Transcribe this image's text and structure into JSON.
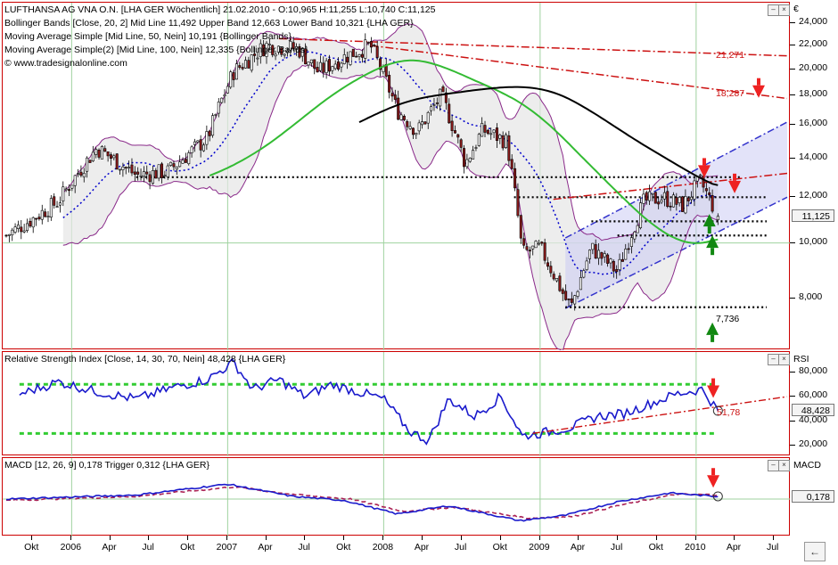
{
  "price_pane": {
    "legend": [
      "LUFTHANSA AG VNA O.N. [LHA GER  Wöchentlich] 21.02.2010 - O:10,965 H:11,255 L:10,740 C:11,125",
      "Bollinger Bands [Close, 20, 2] Mid Line 11,492 Upper Band 12,663 Lower Band 10,321 {LHA GER}",
      "Moving Average Simple [Mid Line, 50, Nein] 10,191 {Bollinger Bands}",
      "Moving Average Simple(2) [Mid Line, 100, Nein] 12,335 {Bollinger Bands}",
      "© www.tradesignalonline.com"
    ],
    "axis_unit": "€",
    "last_price_box": "11,125",
    "annotations": [
      "21,271",
      "18,287",
      "7,736"
    ],
    "colors": {
      "candle_up": "#ffffff",
      "candle_down": "#8b1a1a",
      "bollinger": "#8a2a8a",
      "bollinger_fill": "#e6e6e6",
      "mid_line": "#0000cc",
      "ma50": "#33bb33",
      "ma100": "#000000",
      "resistance": "#cc1111",
      "channel": "#3333cc",
      "channel_fill": "#c8c8f4",
      "horiz_levels": "#000000",
      "arrow_down": "#ee2222",
      "arrow_up": "#118811"
    }
  },
  "rsi_pane": {
    "legend": "Relative Strength Index [Close, 14, 30, 70, Nein] 48,428 {LHA GER}",
    "axis_title": "RSI",
    "value_box": "48,428",
    "annotation": "51,78"
  },
  "macd_pane": {
    "legend": "MACD [12, 26, 9] 0,178 Trigger 0,312 {LHA GER}",
    "axis_title": "MACD",
    "value_box": "0,178"
  },
  "x_axis": {
    "labels": [
      "Okt",
      "2006",
      "Apr",
      "Jul",
      "Okt",
      "2007",
      "Apr",
      "Jul",
      "Okt",
      "2008",
      "Apr",
      "Jul",
      "Okt",
      "2009",
      "Apr",
      "Jul",
      "Okt",
      "2010",
      "Apr",
      "Jul"
    ]
  },
  "chart_data": [
    {
      "type": "candlestick",
      "title": "LUFTHANSA AG VNA O.N. [LHA GER  Wöchentlich]",
      "ylabel": "€",
      "ylim": [
        6.8,
        25.0
      ],
      "y_scale": "log",
      "y_ticks": [
        8,
        10,
        12,
        14,
        16,
        18,
        20,
        22,
        24
      ],
      "y_tick_labels": [
        "8,000",
        "10,000",
        "12,000",
        "14,000",
        "16,000",
        "18,000",
        "20,000",
        "22,000",
        "24,000"
      ],
      "xlim": [
        "2005-08-01",
        "2010-08-02"
      ],
      "date_anchors": [
        "2005-08-01",
        "2005-10-01",
        "2005-12-01",
        "2006-03-01",
        "2006-06-01",
        "2006-08-15",
        "2006-11-15",
        "2007-01-15",
        "2007-04-01",
        "2007-06-15",
        "2007-08-01",
        "2007-10-01",
        "2007-12-01",
        "2008-02-01",
        "2008-03-20",
        "2008-05-15",
        "2008-07-10",
        "2008-08-20",
        "2008-10-15",
        "2008-11-20",
        "2009-01-01",
        "2009-03-01",
        "2009-03-15",
        "2009-05-01",
        "2009-07-01",
        "2009-09-01",
        "2009-10-15",
        "2009-12-01",
        "2010-01-10",
        "2010-02-21"
      ],
      "close_anchors": [
        10.3,
        11.0,
        11.8,
        14.6,
        13.1,
        13.3,
        15.2,
        19.8,
        22.0,
        21.7,
        19.8,
        21.0,
        22.0,
        17.0,
        15.6,
        18.0,
        13.7,
        15.7,
        15.0,
        9.6,
        9.8,
        8.0,
        7.74,
        9.8,
        8.9,
        11.8,
        12.0,
        11.6,
        12.8,
        11.125
      ],
      "series": [
        {
          "name": "Bollinger Upper Band",
          "last": 12.663
        },
        {
          "name": "Bollinger Mid Line",
          "last": 11.492
        },
        {
          "name": "Bollinger Lower Band",
          "last": 10.321
        },
        {
          "name": "Moving Average Simple",
          "last": 10.191
        },
        {
          "name": "Moving Average Simple(2)",
          "last": 12.335
        }
      ],
      "last_bar": {
        "date": "2010-02-21",
        "open": 10.965,
        "high": 11.255,
        "low": 10.74,
        "close": 11.125
      },
      "horizontal_levels": [
        13.0,
        12.0,
        10.9,
        10.3,
        7.736
      ],
      "resistance_lines": [
        {
          "from": [
            "2007-05-01",
            22.6
          ],
          "to": [
            "2010-08-02",
            21.1
          ]
        },
        {
          "from": [
            "2007-12-01",
            22.0
          ],
          "to": [
            "2010-08-02",
            17.8
          ]
        }
      ]
    },
    {
      "type": "line",
      "title": "Relative Strength Index [Close, 14, 30, 70, Nein]",
      "ylim": [
        15,
        92
      ],
      "y_ticks": [
        20,
        40,
        60,
        80
      ],
      "y_tick_labels": [
        "20,000",
        "40,000",
        "60,000",
        "80,000"
      ],
      "series": [
        {
          "name": "RSI",
          "x": [
            "2005-09-01",
            "2005-12-01",
            "2006-03-01",
            "2006-06-01",
            "2006-09-01",
            "2006-11-15",
            "2007-01-15",
            "2007-03-01",
            "2007-05-01",
            "2007-07-01",
            "2007-09-01",
            "2007-11-01",
            "2008-01-01",
            "2008-03-01",
            "2008-04-15",
            "2008-06-01",
            "2008-08-01",
            "2008-10-01",
            "2008-11-20",
            "2009-01-01",
            "2009-03-15",
            "2009-05-15",
            "2009-07-15",
            "2009-09-15",
            "2009-11-15",
            "2010-01-15",
            "2010-02-21"
          ],
          "y": [
            62,
            72,
            64,
            58,
            68,
            74,
            88,
            66,
            74,
            60,
            70,
            64,
            58,
            32,
            24,
            58,
            44,
            60,
            28,
            30,
            35,
            44,
            46,
            54,
            62,
            66,
            48.428
          ]
        }
      ],
      "levels": [
        30,
        70
      ],
      "annotation": "51,78"
    },
    {
      "type": "line",
      "title": "MACD [12, 26, 9]",
      "ylim": [
        -2.5,
        2.5
      ],
      "series": [
        {
          "name": "MACD",
          "x": [
            "2005-08-01",
            "2006-06-01",
            "2007-01-01",
            "2007-06-01",
            "2007-10-01",
            "2008-02-01",
            "2008-06-01",
            "2008-11-15",
            "2009-03-01",
            "2009-07-01",
            "2009-11-01",
            "2010-02-21"
          ],
          "y": [
            0.0,
            0.3,
            1.1,
            0.2,
            -0.1,
            -1.1,
            -0.5,
            -1.6,
            -1.2,
            -0.2,
            0.45,
            0.178
          ]
        },
        {
          "name": "Trigger",
          "x": [
            "2005-08-01",
            "2006-06-01",
            "2007-01-15",
            "2007-06-15",
            "2007-10-15",
            "2008-02-15",
            "2008-06-15",
            "2008-12-01",
            "2009-03-15",
            "2009-07-15",
            "2009-11-15",
            "2010-02-21"
          ],
          "y": [
            -0.1,
            0.2,
            0.9,
            0.3,
            0.0,
            -0.9,
            -0.6,
            -1.4,
            -1.3,
            -0.4,
            0.35,
            0.312
          ]
        }
      ]
    }
  ]
}
